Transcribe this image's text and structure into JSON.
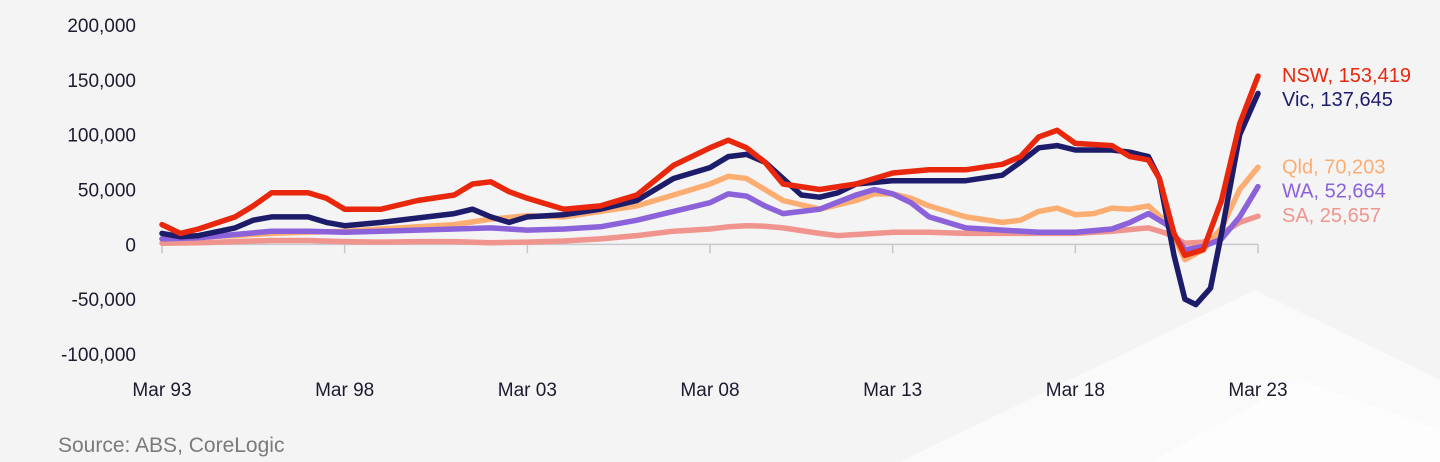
{
  "source": "Source: ABS, CoreLogic",
  "colors": {
    "background": "#f4f4f5",
    "axis": "#c8c8cc",
    "tick_text": "#1b1b2e",
    "source_text": "#7a7a7a"
  },
  "chart_data": {
    "type": "line",
    "title": "",
    "xlabel": "",
    "ylabel": "",
    "ylim": [
      -100000,
      200000
    ],
    "yticks": [
      200000,
      150000,
      100000,
      50000,
      0,
      -50000,
      -100000
    ],
    "ytick_labels": [
      "200,000",
      "150,000",
      "100,000",
      "50,000",
      "0",
      "-50,000",
      "-100,000"
    ],
    "xlim": [
      1993.0,
      2023.0
    ],
    "xticks": [
      1993.0,
      1998.0,
      2003.0,
      2008.0,
      2013.0,
      2018.0,
      2023.0
    ],
    "xtick_labels": [
      "Mar 93",
      "Mar 98",
      "Mar 03",
      "Mar 08",
      "Mar 13",
      "Mar 18",
      "Mar 23"
    ],
    "grid": false,
    "legend": "end-of-line labels",
    "series": [
      {
        "name": "SA",
        "end_label": "SA, 25,657",
        "color": "#f0958e",
        "points": [
          [
            1993.0,
            1000
          ],
          [
            1994.0,
            1500
          ],
          [
            1995.0,
            2500
          ],
          [
            1996.0,
            3500
          ],
          [
            1997.0,
            3500
          ],
          [
            1998.0,
            2500
          ],
          [
            1999.0,
            2000
          ],
          [
            2000.0,
            2500
          ],
          [
            2001.0,
            2500
          ],
          [
            2002.0,
            1500
          ],
          [
            2003.0,
            2000
          ],
          [
            2004.0,
            3000
          ],
          [
            2005.0,
            5000
          ],
          [
            2006.0,
            8000
          ],
          [
            2007.0,
            12000
          ],
          [
            2008.0,
            14000
          ],
          [
            2008.5,
            16000
          ],
          [
            2009.0,
            17000
          ],
          [
            2009.5,
            16500
          ],
          [
            2010.0,
            15000
          ],
          [
            2011.0,
            10000
          ],
          [
            2011.5,
            8000
          ],
          [
            2012.0,
            9000
          ],
          [
            2013.0,
            11000
          ],
          [
            2014.0,
            11000
          ],
          [
            2015.0,
            10000
          ],
          [
            2016.0,
            10000
          ],
          [
            2017.0,
            10000
          ],
          [
            2018.0,
            10000
          ],
          [
            2019.0,
            12000
          ],
          [
            2020.0,
            15000
          ],
          [
            2020.5,
            10000
          ],
          [
            2021.0,
            1000
          ],
          [
            2021.5,
            2000
          ],
          [
            2022.0,
            10000
          ],
          [
            2022.5,
            20000
          ],
          [
            2023.0,
            25657
          ]
        ]
      },
      {
        "name": "Qld",
        "end_label": "Qld, 70,203",
        "color": "#fcae72",
        "points": [
          [
            1993.0,
            5000
          ],
          [
            1994.0,
            7000
          ],
          [
            1995.0,
            8000
          ],
          [
            1996.0,
            10000
          ],
          [
            1997.0,
            11000
          ],
          [
            1998.0,
            12000
          ],
          [
            1999.0,
            14000
          ],
          [
            2000.0,
            16000
          ],
          [
            2001.0,
            18000
          ],
          [
            2002.0,
            23000
          ],
          [
            2003.0,
            26000
          ],
          [
            2004.0,
            25000
          ],
          [
            2005.0,
            30000
          ],
          [
            2006.0,
            35000
          ],
          [
            2007.0,
            45000
          ],
          [
            2008.0,
            55000
          ],
          [
            2008.5,
            62000
          ],
          [
            2009.0,
            60000
          ],
          [
            2009.5,
            50000
          ],
          [
            2010.0,
            40000
          ],
          [
            2011.0,
            32000
          ],
          [
            2012.0,
            40000
          ],
          [
            2012.5,
            46000
          ],
          [
            2013.0,
            46000
          ],
          [
            2013.5,
            42000
          ],
          [
            2014.0,
            35000
          ],
          [
            2015.0,
            25000
          ],
          [
            2016.0,
            20000
          ],
          [
            2016.5,
            22000
          ],
          [
            2017.0,
            30000
          ],
          [
            2017.5,
            33000
          ],
          [
            2018.0,
            27000
          ],
          [
            2018.5,
            28000
          ],
          [
            2019.0,
            33000
          ],
          [
            2019.5,
            32000
          ],
          [
            2020.0,
            35000
          ],
          [
            2020.5,
            20000
          ],
          [
            2021.0,
            -14000
          ],
          [
            2021.5,
            -5000
          ],
          [
            2022.0,
            15000
          ],
          [
            2022.5,
            50000
          ],
          [
            2023.0,
            70203
          ]
        ]
      },
      {
        "name": "WA",
        "end_label": "WA, 52,664",
        "color": "#8b62d9",
        "points": [
          [
            1993.0,
            5000
          ],
          [
            1994.0,
            6000
          ],
          [
            1995.0,
            9000
          ],
          [
            1996.0,
            12000
          ],
          [
            1997.0,
            12000
          ],
          [
            1998.0,
            11000
          ],
          [
            1999.0,
            12000
          ],
          [
            2000.0,
            13000
          ],
          [
            2001.0,
            14000
          ],
          [
            2002.0,
            15000
          ],
          [
            2003.0,
            13000
          ],
          [
            2004.0,
            14000
          ],
          [
            2005.0,
            16000
          ],
          [
            2006.0,
            22000
          ],
          [
            2007.0,
            30000
          ],
          [
            2008.0,
            38000
          ],
          [
            2008.5,
            46000
          ],
          [
            2009.0,
            44000
          ],
          [
            2009.5,
            35000
          ],
          [
            2010.0,
            28000
          ],
          [
            2011.0,
            32000
          ],
          [
            2012.0,
            45000
          ],
          [
            2012.5,
            50000
          ],
          [
            2013.0,
            46000
          ],
          [
            2013.5,
            38000
          ],
          [
            2014.0,
            25000
          ],
          [
            2015.0,
            15000
          ],
          [
            2016.0,
            13000
          ],
          [
            2017.0,
            11000
          ],
          [
            2018.0,
            11000
          ],
          [
            2019.0,
            14000
          ],
          [
            2019.5,
            20000
          ],
          [
            2020.0,
            28000
          ],
          [
            2020.5,
            18000
          ],
          [
            2021.0,
            -5000
          ],
          [
            2021.5,
            -2000
          ],
          [
            2022.0,
            5000
          ],
          [
            2022.5,
            25000
          ],
          [
            2023.0,
            52664
          ]
        ]
      },
      {
        "name": "Vic",
        "end_label": "Vic, 137,645",
        "color": "#1c1c6b",
        "points": [
          [
            1993.0,
            10000
          ],
          [
            1993.5,
            7000
          ],
          [
            1994.0,
            8000
          ],
          [
            1995.0,
            15000
          ],
          [
            1995.5,
            22000
          ],
          [
            1996.0,
            25000
          ],
          [
            1997.0,
            25000
          ],
          [
            1997.5,
            20000
          ],
          [
            1998.0,
            17000
          ],
          [
            1999.0,
            20000
          ],
          [
            2000.0,
            24000
          ],
          [
            2001.0,
            28000
          ],
          [
            2001.5,
            32000
          ],
          [
            2002.0,
            25000
          ],
          [
            2002.5,
            20000
          ],
          [
            2003.0,
            25000
          ],
          [
            2004.0,
            27000
          ],
          [
            2005.0,
            32000
          ],
          [
            2006.0,
            40000
          ],
          [
            2007.0,
            60000
          ],
          [
            2008.0,
            70000
          ],
          [
            2008.5,
            80000
          ],
          [
            2009.0,
            82000
          ],
          [
            2009.5,
            75000
          ],
          [
            2010.0,
            60000
          ],
          [
            2010.5,
            45000
          ],
          [
            2011.0,
            43000
          ],
          [
            2011.5,
            47000
          ],
          [
            2012.0,
            55000
          ],
          [
            2013.0,
            58000
          ],
          [
            2014.0,
            58000
          ],
          [
            2015.0,
            58000
          ],
          [
            2016.0,
            63000
          ],
          [
            2016.5,
            75000
          ],
          [
            2017.0,
            88000
          ],
          [
            2017.5,
            90000
          ],
          [
            2018.0,
            86000
          ],
          [
            2019.0,
            86000
          ],
          [
            2019.5,
            84000
          ],
          [
            2020.0,
            80000
          ],
          [
            2020.3,
            60000
          ],
          [
            2020.7,
            -10000
          ],
          [
            2021.0,
            -50000
          ],
          [
            2021.3,
            -55000
          ],
          [
            2021.7,
            -40000
          ],
          [
            2022.0,
            10000
          ],
          [
            2022.5,
            100000
          ],
          [
            2023.0,
            137645
          ]
        ]
      },
      {
        "name": "NSW",
        "end_label": "NSW, 153,419",
        "color": "#e8270c",
        "points": [
          [
            1993.0,
            18000
          ],
          [
            1993.5,
            10000
          ],
          [
            1994.0,
            14000
          ],
          [
            1995.0,
            25000
          ],
          [
            1995.5,
            35000
          ],
          [
            1996.0,
            47000
          ],
          [
            1997.0,
            47000
          ],
          [
            1997.5,
            42000
          ],
          [
            1998.0,
            32000
          ],
          [
            1999.0,
            32000
          ],
          [
            2000.0,
            40000
          ],
          [
            2001.0,
            45000
          ],
          [
            2001.5,
            55000
          ],
          [
            2002.0,
            57000
          ],
          [
            2002.5,
            48000
          ],
          [
            2003.0,
            42000
          ],
          [
            2004.0,
            32000
          ],
          [
            2005.0,
            35000
          ],
          [
            2006.0,
            45000
          ],
          [
            2007.0,
            72000
          ],
          [
            2008.0,
            88000
          ],
          [
            2008.5,
            95000
          ],
          [
            2009.0,
            88000
          ],
          [
            2009.5,
            75000
          ],
          [
            2010.0,
            55000
          ],
          [
            2011.0,
            50000
          ],
          [
            2012.0,
            55000
          ],
          [
            2013.0,
            65000
          ],
          [
            2014.0,
            68000
          ],
          [
            2015.0,
            68000
          ],
          [
            2016.0,
            73000
          ],
          [
            2016.5,
            80000
          ],
          [
            2017.0,
            98000
          ],
          [
            2017.5,
            104000
          ],
          [
            2018.0,
            92000
          ],
          [
            2019.0,
            90000
          ],
          [
            2019.5,
            80000
          ],
          [
            2020.0,
            77000
          ],
          [
            2020.3,
            60000
          ],
          [
            2020.7,
            10000
          ],
          [
            2021.0,
            -10000
          ],
          [
            2021.5,
            -5000
          ],
          [
            2022.0,
            40000
          ],
          [
            2022.5,
            110000
          ],
          [
            2023.0,
            153419
          ]
        ]
      }
    ]
  }
}
